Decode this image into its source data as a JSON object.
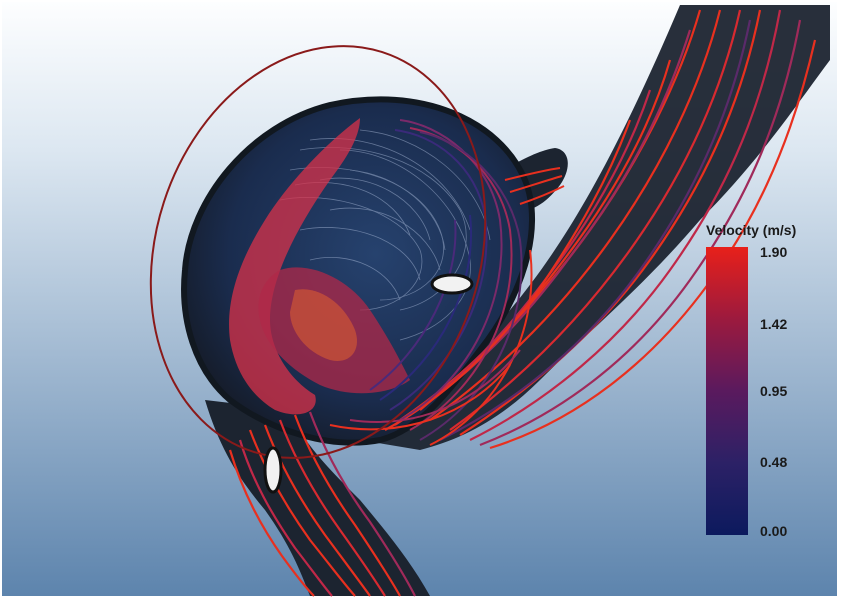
{
  "legend": {
    "title": "Velocity (m/s)",
    "ticks": [
      "1.90",
      "1.42",
      "0.95",
      "0.48",
      "0.00"
    ],
    "colors": [
      "#e8201a",
      "#9c1a3e",
      "#5a1a5e",
      "#2c2166",
      "#0c1a5e"
    ]
  },
  "scene": {
    "background_top": "#fdfeff",
    "background_bottom": "#5d84ad",
    "vessel_color": "#1c2430",
    "streamline_hot": "#e8301f",
    "streamline_mid": "#a02a5a",
    "streamline_cold": "#2a2a6a"
  }
}
